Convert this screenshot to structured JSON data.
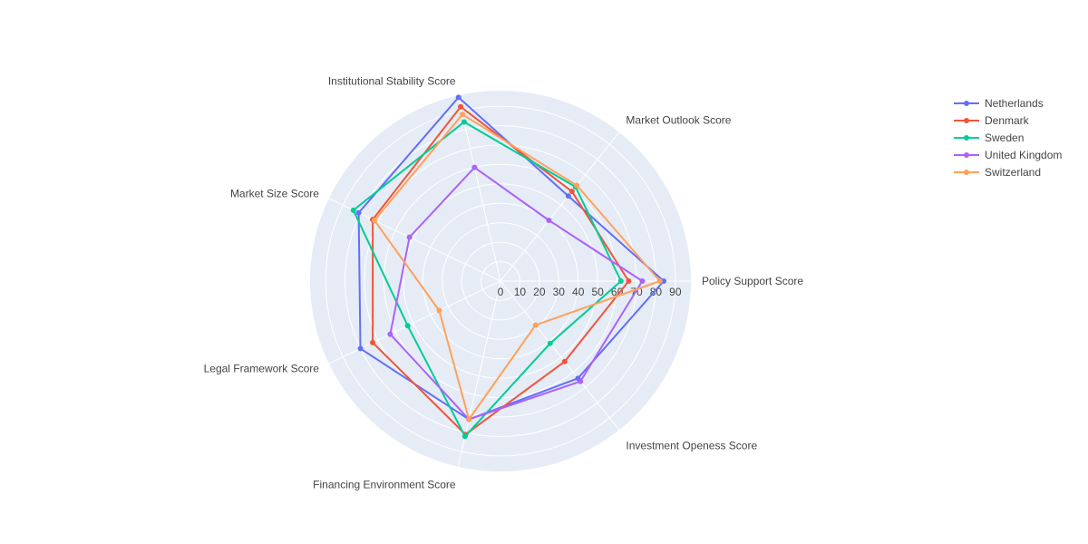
{
  "chart_data": {
    "type": "radar",
    "title": "",
    "axes": [
      "Policy Support Score",
      "Market Outlook Score",
      "Institutional Stability Score",
      "Market Size Score",
      "Legal Framework Score",
      "Financing Environment Score",
      "Investment Openess Score"
    ],
    "radial_ticks": [
      0,
      10,
      20,
      30,
      40,
      50,
      60,
      70,
      80,
      90
    ],
    "radial_range": [
      0,
      98
    ],
    "legend_position": "top-right",
    "series": [
      {
        "name": "Netherlands",
        "color": "#636efa",
        "values": [
          84,
          56,
          97,
          81,
          80,
          73,
          64
        ]
      },
      {
        "name": "Denmark",
        "color": "#EF553B",
        "values": [
          66,
          59,
          92,
          73,
          73,
          81,
          53
        ]
      },
      {
        "name": "Sweden",
        "color": "#00cc96",
        "values": [
          62,
          62,
          84,
          84,
          53,
          82,
          41
        ]
      },
      {
        "name": "United Kingdom",
        "color": "#ab63fa",
        "values": [
          73,
          40,
          60,
          52,
          63,
          73,
          66
        ]
      },
      {
        "name": "Switzerland",
        "color": "#FFA15A",
        "values": [
          82,
          63,
          88,
          72,
          35,
          73,
          29
        ]
      }
    ]
  }
}
